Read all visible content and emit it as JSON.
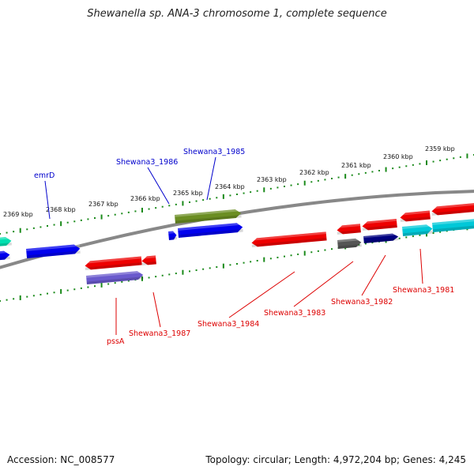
{
  "title": "Shewanella sp. ANA-3 chromosome 1, complete sequence",
  "footer": {
    "accession": "Accession: NC_008577",
    "summary": "Topology: circular; Length: 4,972,204 bp; Genes: 4,245"
  },
  "ruler_labels": [
    "2369 kbp",
    "2368 kbp",
    "2367 kbp",
    "2366 kbp",
    "2365 kbp",
    "2364 kbp",
    "2363 kbp",
    "2362 kbp",
    "2361 kbp",
    "2360 kbp",
    "2359 kbp"
  ],
  "genes_top": [
    {
      "label": "emrD",
      "color": "#0000cc"
    },
    {
      "label": "Shewana3_1986",
      "color": "#0000cc"
    },
    {
      "label": "Shewana3_1985",
      "color": "#0000cc"
    }
  ],
  "genes_bottom": [
    {
      "label": "pssA",
      "color": "#dd0000"
    },
    {
      "label": "Shewana3_1987",
      "color": "#dd0000"
    },
    {
      "label": "Shewana3_1984",
      "color": "#dd0000"
    },
    {
      "label": "Shewana3_1983",
      "color": "#dd0000"
    },
    {
      "label": "Shewana3_1982",
      "color": "#dd0000"
    },
    {
      "label": "Shewana3_1981",
      "color": "#dd0000"
    }
  ],
  "colors": {
    "backbone": "#888888",
    "ruler": "#1a8a1a",
    "forward_gene": "#0000ee",
    "reverse_gene": "#ee0000",
    "olive_gene": "#6b8e23",
    "slate_gene": "#6a5acd",
    "cyan_gene": "#00c8d8",
    "teal_gene": "#00e0b0",
    "gray_gene": "#555555",
    "navy_gene": "#000080"
  }
}
